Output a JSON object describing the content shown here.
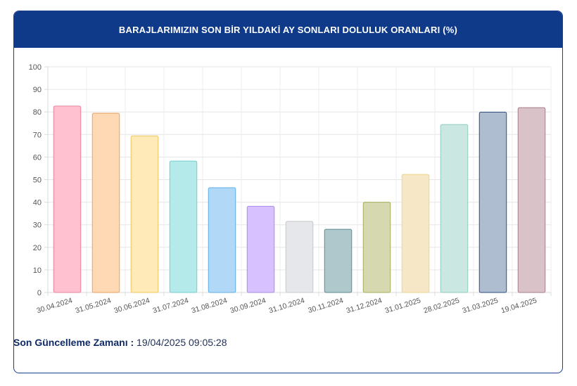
{
  "header": {
    "title": "BARAJLARIMIZIN SON BİR YILDAKİ AY SONLARI DOLULUK ORANLARI (%)"
  },
  "footer": {
    "label": "Son Güncelleme Zamanı :",
    "value": "19/04/2025 09:05:28"
  },
  "chart_data": {
    "type": "bar",
    "title": "BARAJLARIMIZIN SON BİR YILDAKİ AY SONLARI DOLULUK ORANLARI (%)",
    "xlabel": "",
    "ylabel": "",
    "ylim": [
      0,
      100
    ],
    "yticks": [
      0,
      10,
      20,
      30,
      40,
      50,
      60,
      70,
      80,
      90,
      100
    ],
    "grid": true,
    "categories": [
      "30.04.2024",
      "31.05.2024",
      "30.06.2024",
      "31.07.2024",
      "31.08.2024",
      "30.09.2024",
      "31.10.2024",
      "30.11.2024",
      "31.12.2024",
      "31.01.2025",
      "28.02.2025",
      "31.03.2025",
      "19.04.2025"
    ],
    "values": [
      82.6,
      79.4,
      69.4,
      58.2,
      46.4,
      38.2,
      31.5,
      28.0,
      40.0,
      52.3,
      74.4,
      79.9,
      81.9
    ],
    "fill_colors": [
      "#ffc1d0",
      "#ffd9b3",
      "#ffeab8",
      "#b5eaea",
      "#b1d9f7",
      "#d7c2ff",
      "#e6e7ea",
      "#aec8cc",
      "#d6d9b0",
      "#f6e8c6",
      "#cbe7e1",
      "#aebdd0",
      "#d9c2c8"
    ],
    "stroke_colors": [
      "#e8839b",
      "#ee9f5c",
      "#f0c55e",
      "#6fcfd0",
      "#5eaee8",
      "#a98ae8",
      "#c6c8cc",
      "#5e8b94",
      "#a8ad5a",
      "#eed58a",
      "#8fcdbf",
      "#2f4f7f",
      "#a77d8a"
    ]
  }
}
